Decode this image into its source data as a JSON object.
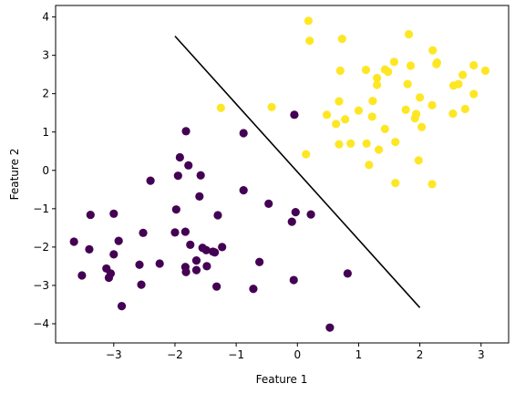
{
  "chart_data": {
    "type": "scatter",
    "title": "",
    "xlabel": "Feature 1",
    "ylabel": "Feature 2",
    "xlim": [
      -3.95,
      3.45
    ],
    "ylim": [
      -4.5,
      4.3
    ],
    "xticks": [
      -3,
      -2,
      -1,
      0,
      1,
      2,
      3
    ],
    "yticks": [
      -4,
      -3,
      -2,
      -1,
      0,
      1,
      2,
      3,
      4
    ],
    "xtick_labels": [
      "−3",
      "−2",
      "−1",
      "0",
      "1",
      "2",
      "3"
    ],
    "ytick_labels": [
      "−4",
      "−3",
      "−2",
      "−1",
      "0",
      "1",
      "2",
      "3",
      "4"
    ],
    "grid": false,
    "legend": "none",
    "series": [
      {
        "class": 0,
        "color": "#440154",
        "points": [
          [
            -1.82,
            1.02
          ],
          [
            -1.92,
            0.34
          ],
          [
            -1.78,
            0.13
          ],
          [
            -1.95,
            -0.14
          ],
          [
            -1.58,
            -0.13
          ],
          [
            -2.4,
            -0.27
          ],
          [
            -0.88,
            0.97
          ],
          [
            -0.05,
            1.45
          ],
          [
            -1.6,
            -0.68
          ],
          [
            -0.88,
            -0.52
          ],
          [
            -0.47,
            -0.87
          ],
          [
            -0.03,
            -1.09
          ],
          [
            0.22,
            -1.15
          ],
          [
            -0.09,
            -1.34
          ],
          [
            -1.98,
            -1.02
          ],
          [
            -1.3,
            -1.17
          ],
          [
            -3.38,
            -1.16
          ],
          [
            -3.0,
            -1.13
          ],
          [
            -2.52,
            -1.63
          ],
          [
            -2.0,
            -1.62
          ],
          [
            -1.83,
            -1.6
          ],
          [
            -3.65,
            -1.86
          ],
          [
            -3.4,
            -2.06
          ],
          [
            -2.92,
            -1.84
          ],
          [
            -1.75,
            -1.94
          ],
          [
            -1.55,
            -2.02
          ],
          [
            -1.49,
            -2.08
          ],
          [
            -1.38,
            -2.12
          ],
          [
            -1.23,
            -2.0
          ],
          [
            -1.35,
            -2.14
          ],
          [
            -3.0,
            -2.19
          ],
          [
            -3.12,
            -2.56
          ],
          [
            -3.05,
            -2.69
          ],
          [
            -3.08,
            -2.8
          ],
          [
            -3.52,
            -2.74
          ],
          [
            -2.58,
            -2.46
          ],
          [
            -2.25,
            -2.43
          ],
          [
            -1.83,
            -2.52
          ],
          [
            -1.48,
            -2.5
          ],
          [
            -1.65,
            -2.35
          ],
          [
            -1.82,
            -2.65
          ],
          [
            -1.65,
            -2.6
          ],
          [
            -2.55,
            -2.98
          ],
          [
            -1.32,
            -3.03
          ],
          [
            -0.72,
            -3.09
          ],
          [
            -2.87,
            -3.54
          ],
          [
            -0.62,
            -2.39
          ],
          [
            -0.06,
            -2.86
          ],
          [
            0.82,
            -2.69
          ],
          [
            0.53,
            -4.1
          ]
        ]
      },
      {
        "class": 1,
        "color": "#fde725",
        "points": [
          [
            0.18,
            3.9
          ],
          [
            1.82,
            3.55
          ],
          [
            0.2,
            3.38
          ],
          [
            0.73,
            3.43
          ],
          [
            2.21,
            3.13
          ],
          [
            2.27,
            2.77
          ],
          [
            2.28,
            2.81
          ],
          [
            2.88,
            2.74
          ],
          [
            3.07,
            2.6
          ],
          [
            2.7,
            2.49
          ],
          [
            2.63,
            2.25
          ],
          [
            2.55,
            2.21
          ],
          [
            1.85,
            2.73
          ],
          [
            1.58,
            2.83
          ],
          [
            1.43,
            2.63
          ],
          [
            1.48,
            2.57
          ],
          [
            1.3,
            2.41
          ],
          [
            1.3,
            2.23
          ],
          [
            1.12,
            2.62
          ],
          [
            0.7,
            2.6
          ],
          [
            1.8,
            2.25
          ],
          [
            2.0,
            1.9
          ],
          [
            2.2,
            1.7
          ],
          [
            2.74,
            1.6
          ],
          [
            2.54,
            1.48
          ],
          [
            2.88,
            1.99
          ],
          [
            1.23,
            1.81
          ],
          [
            1.77,
            1.58
          ],
          [
            1.94,
            1.47
          ],
          [
            1.92,
            1.36
          ],
          [
            1.0,
            1.56
          ],
          [
            0.68,
            1.8
          ],
          [
            0.78,
            1.33
          ],
          [
            0.63,
            1.21
          ],
          [
            1.22,
            1.4
          ],
          [
            0.48,
            1.45
          ],
          [
            1.43,
            1.08
          ],
          [
            2.03,
            1.13
          ],
          [
            1.6,
            0.74
          ],
          [
            1.13,
            0.7
          ],
          [
            0.87,
            0.7
          ],
          [
            0.68,
            0.68
          ],
          [
            1.33,
            0.54
          ],
          [
            0.14,
            0.42
          ],
          [
            1.98,
            0.26
          ],
          [
            1.17,
            0.14
          ],
          [
            1.6,
            -0.33
          ],
          [
            2.2,
            -0.36
          ],
          [
            -1.25,
            1.63
          ],
          [
            -0.42,
            1.65
          ]
        ]
      }
    ],
    "decision_boundary": {
      "color": "#000000",
      "points": [
        [
          -2.0,
          3.5
        ],
        [
          2.0,
          -3.58
        ]
      ]
    }
  }
}
